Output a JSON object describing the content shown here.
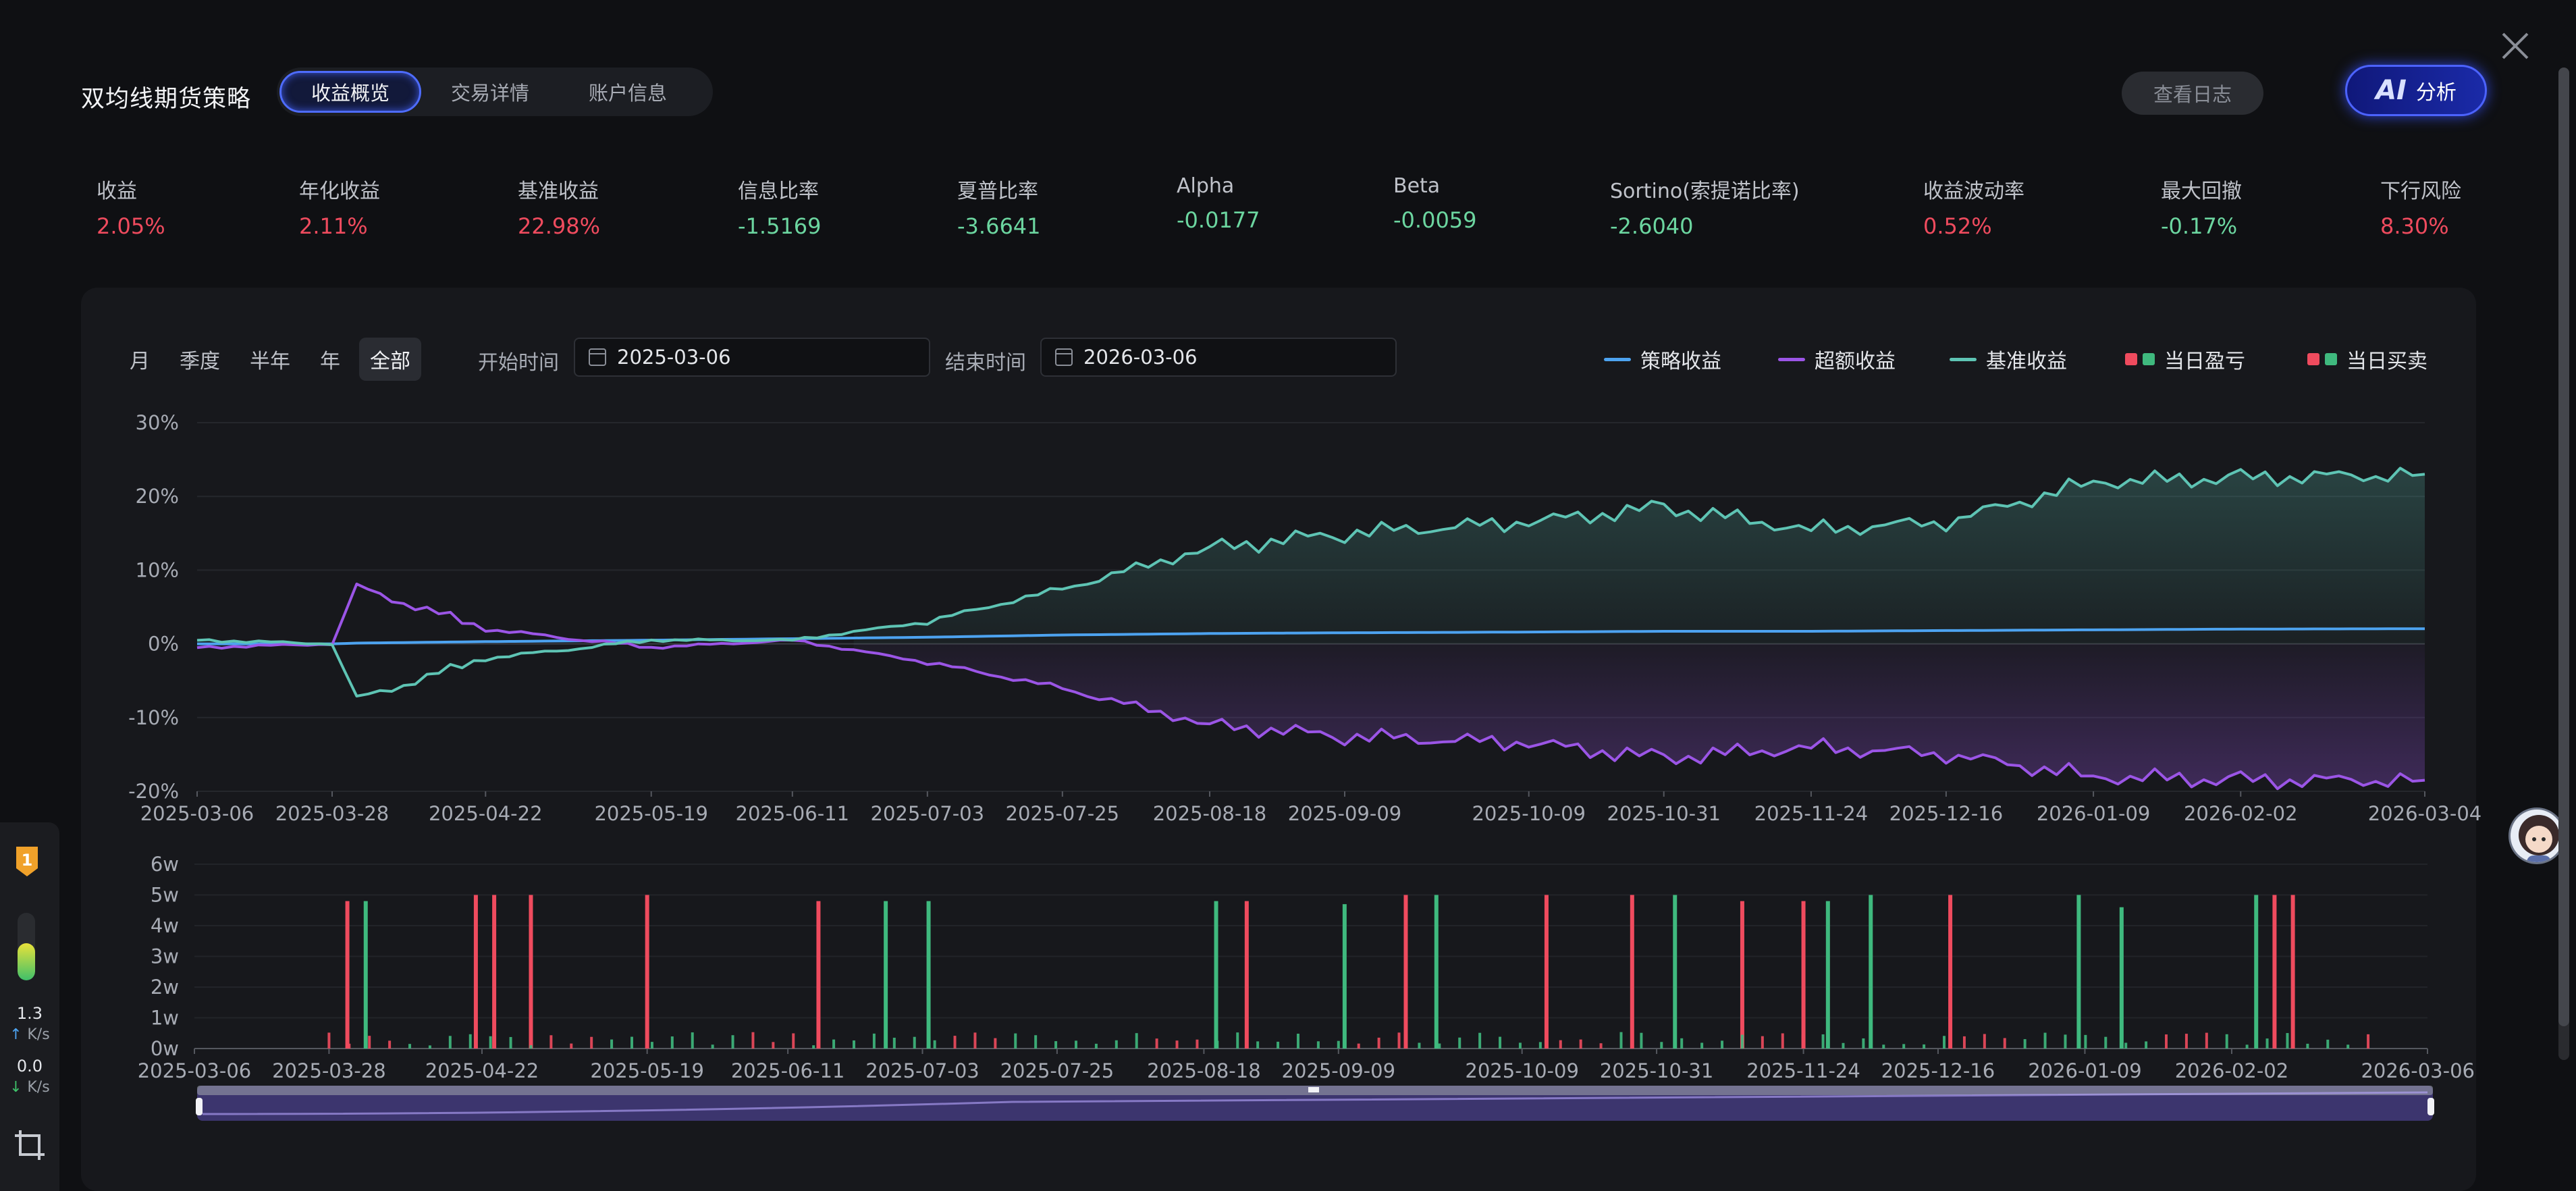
{
  "header": {
    "title": "双均线期货策略",
    "tabs": [
      {
        "label": "收益概览",
        "active": true
      },
      {
        "label": "交易详情",
        "active": false
      },
      {
        "label": "账户信息",
        "active": false
      }
    ],
    "log_button": "查看日志",
    "ai_mark": "AI",
    "ai_label": "分析"
  },
  "metrics": [
    {
      "label": "收益",
      "value": "2.05%",
      "tone": "red"
    },
    {
      "label": "年化收益",
      "value": "2.11%",
      "tone": "red"
    },
    {
      "label": "基准收益",
      "value": "22.98%",
      "tone": "red"
    },
    {
      "label": "信息比率",
      "value": "-1.5169",
      "tone": "green"
    },
    {
      "label": "夏普比率",
      "value": "-3.6641",
      "tone": "green"
    },
    {
      "label": "Alpha",
      "value": "-0.0177",
      "tone": "green"
    },
    {
      "label": "Beta",
      "value": "-0.0059",
      "tone": "green"
    },
    {
      "label": "Sortino(索提诺比率)",
      "value": "-2.6040",
      "tone": "green"
    },
    {
      "label": "收益波动率",
      "value": "0.52%",
      "tone": "red"
    },
    {
      "label": "最大回撤",
      "value": "-0.17%",
      "tone": "green"
    },
    {
      "label": "下行风险",
      "value": "8.30%",
      "tone": "red"
    }
  ],
  "controls": {
    "periods": [
      "月",
      "季度",
      "半年",
      "年",
      "全部"
    ],
    "active_period": "全部",
    "start_label": "开始时间",
    "start_date": "2025-03-06",
    "end_label": "结束时间",
    "end_date": "2026-03-06"
  },
  "legend": [
    {
      "label": "策略收益",
      "kind": "line",
      "color": "#4da3f0"
    },
    {
      "label": "超额收益",
      "kind": "line",
      "color": "#9b55e6"
    },
    {
      "label": "基准收益",
      "kind": "line",
      "color": "#5ec4b4"
    },
    {
      "label": "当日盈亏",
      "kind": "squares",
      "colors": [
        "#ef4b5e",
        "#3fb97e"
      ]
    },
    {
      "label": "当日买卖",
      "kind": "squares",
      "colors": [
        "#ef4b5e",
        "#3fb97e"
      ]
    }
  ],
  "chart_data": [
    {
      "type": "line",
      "y_ticks": [
        "30%",
        "20%",
        "10%",
        "0%",
        "-10%",
        "-20%"
      ],
      "ylim": [
        -20,
        30
      ],
      "x_ticks": [
        "2025-03-06",
        "2025-03-28",
        "2025-04-22",
        "2025-05-19",
        "2025-06-11",
        "2025-07-03",
        "2025-07-25",
        "2025-08-18",
        "2025-09-09",
        "2025-10-09",
        "2025-10-31",
        "2025-11-24",
        "2025-12-16",
        "2026-01-09",
        "2026-02-02",
        "2026-03-04"
      ],
      "x": [
        "2025-03-06",
        "2025-03-28",
        "2025-04-01",
        "2025-04-22",
        "2025-05-19",
        "2025-06-11",
        "2025-07-03",
        "2025-07-25",
        "2025-08-18",
        "2025-09-09",
        "2025-10-09",
        "2025-10-31",
        "2025-11-24",
        "2025-12-16",
        "2026-01-09",
        "2026-02-02",
        "2026-03-04"
      ],
      "series": [
        {
          "name": "策略收益",
          "color": "#4da3f0",
          "values": [
            0,
            0,
            0.1,
            0.3,
            0.5,
            0.7,
            0.9,
            1.2,
            1.4,
            1.5,
            1.6,
            1.7,
            1.7,
            1.8,
            1.9,
            2.0,
            2.05
          ]
        },
        {
          "name": "超额收益",
          "color": "#9b55e6",
          "values": [
            -0.5,
            0,
            7.7,
            2.0,
            -0.5,
            0.5,
            -2.5,
            -6.0,
            -11.0,
            -12.5,
            -13.5,
            -15.5,
            -14.0,
            -15.0,
            -18.0,
            -18.5,
            -18.5
          ]
        },
        {
          "name": "基准收益",
          "color": "#5ec4b4",
          "values": [
            0.5,
            0,
            -7.5,
            -2.0,
            0.5,
            0.5,
            3.0,
            7.5,
            13.0,
            15.0,
            16.5,
            18.5,
            15.5,
            16.5,
            22.0,
            22.5,
            23.0
          ]
        }
      ]
    },
    {
      "type": "bar",
      "y_ticks": [
        "6w",
        "5w",
        "4w",
        "3w",
        "2w",
        "1w",
        "0w"
      ],
      "ylim": [
        0,
        6
      ],
      "x_ticks": [
        "2025-03-06",
        "2025-03-28",
        "2025-04-22",
        "2025-05-19",
        "2025-06-11",
        "2025-07-03",
        "2025-07-25",
        "2025-08-18",
        "2025-09-09",
        "2025-10-09",
        "2025-10-31",
        "2025-11-24",
        "2025-12-16",
        "2026-01-09",
        "2026-02-02",
        "2026-03-06"
      ],
      "series": [
        {
          "name": "当日买卖",
          "tall_bars": [
            {
              "x": "2025-03-31",
              "value": 4.8,
              "color": "red"
            },
            {
              "x": "2025-04-03",
              "value": 4.8,
              "color": "green"
            },
            {
              "x": "2025-04-21",
              "value": 5.0,
              "color": "red"
            },
            {
              "x": "2025-04-24",
              "value": 5.0,
              "color": "red"
            },
            {
              "x": "2025-04-30",
              "value": 5.0,
              "color": "red"
            },
            {
              "x": "2025-05-19",
              "value": 5.0,
              "color": "red"
            },
            {
              "x": "2025-06-16",
              "value": 4.8,
              "color": "red"
            },
            {
              "x": "2025-06-27",
              "value": 4.8,
              "color": "green"
            },
            {
              "x": "2025-07-04",
              "value": 4.8,
              "color": "green"
            },
            {
              "x": "2025-08-20",
              "value": 4.8,
              "color": "green"
            },
            {
              "x": "2025-08-25",
              "value": 4.8,
              "color": "red"
            },
            {
              "x": "2025-09-10",
              "value": 4.7,
              "color": "green"
            },
            {
              "x": "2025-09-20",
              "value": 5.0,
              "color": "red"
            },
            {
              "x": "2025-09-25",
              "value": 5.0,
              "color": "green"
            },
            {
              "x": "2025-10-13",
              "value": 5.0,
              "color": "red"
            },
            {
              "x": "2025-10-27",
              "value": 5.0,
              "color": "red"
            },
            {
              "x": "2025-11-03",
              "value": 5.0,
              "color": "green"
            },
            {
              "x": "2025-11-14",
              "value": 4.8,
              "color": "red"
            },
            {
              "x": "2025-11-24",
              "value": 4.8,
              "color": "red"
            },
            {
              "x": "2025-11-28",
              "value": 4.8,
              "color": "green"
            },
            {
              "x": "2025-12-05",
              "value": 5.0,
              "color": "green"
            },
            {
              "x": "2025-12-18",
              "value": 5.0,
              "color": "red"
            },
            {
              "x": "2026-01-08",
              "value": 5.0,
              "color": "green"
            },
            {
              "x": "2026-01-15",
              "value": 4.6,
              "color": "green"
            },
            {
              "x": "2026-02-06",
              "value": 5.0,
              "color": "green"
            },
            {
              "x": "2026-02-09",
              "value": 5.0,
              "color": "red"
            },
            {
              "x": "2026-02-12",
              "value": 5.0,
              "color": "red"
            }
          ]
        }
      ]
    }
  ],
  "sidebar": {
    "badge": "1",
    "meter_level": 0.55,
    "upload_value": "1.3",
    "upload_unit": "K/s",
    "download_value": "0.0",
    "download_unit": "K/s"
  }
}
